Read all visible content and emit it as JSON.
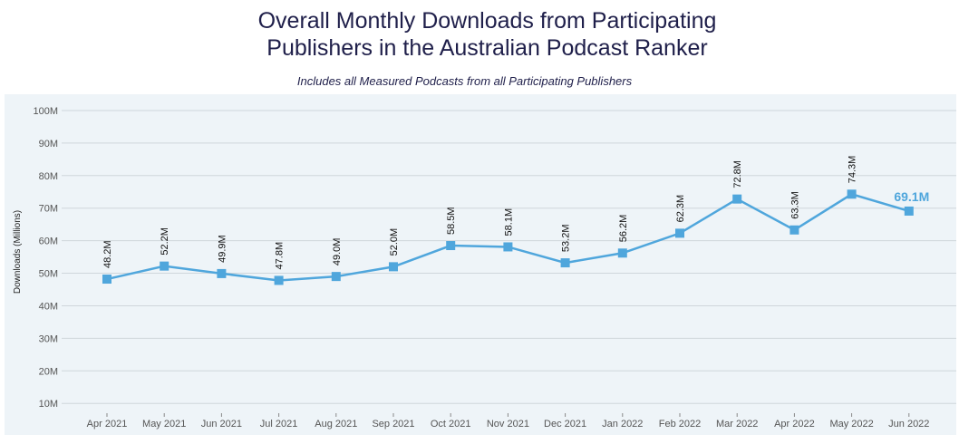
{
  "header": {
    "title_line1": "Overall Monthly Downloads from Participating",
    "title_line2": "Publishers in the Australian Podcast Ranker",
    "subtitle": "Includes all Measured Podcasts from all Participating Publishers"
  },
  "colors": {
    "plot_background": "#eef4f8",
    "series": "#4fa6dc",
    "grid": "#cfd6db"
  },
  "chart_data": {
    "type": "line",
    "ylabel": "Downloads (Millions)",
    "ylim": [
      7,
      105
    ],
    "yticks": [
      10,
      20,
      30,
      40,
      50,
      60,
      70,
      80,
      90,
      100
    ],
    "ytick_labels": [
      "10M",
      "20M",
      "30M",
      "40M",
      "50M",
      "60M",
      "70M",
      "80M",
      "90M",
      "100M"
    ],
    "grid": true,
    "categories": [
      "Apr 2021",
      "May 2021",
      "Jun 2021",
      "Jul 2021",
      "Aug 2021",
      "Sep 2021",
      "Oct 2021",
      "Nov 2021",
      "Dec 2021",
      "Jan 2022",
      "Feb 2022",
      "Mar 2022",
      "Apr 2022",
      "May 2022",
      "Jun 2022"
    ],
    "series": [
      {
        "values": [
          48.2,
          52.2,
          49.9,
          47.8,
          49.0,
          52.0,
          58.5,
          58.1,
          53.2,
          56.2,
          62.3,
          72.8,
          63.3,
          74.3,
          69.1
        ],
        "labels": [
          "48.2M",
          "52.2M",
          "49.9M",
          "47.8M",
          "49.0M",
          "52.0M",
          "58.5M",
          "58.1M",
          "53.2M",
          "56.2M",
          "62.3M",
          "72.8M",
          "63.3M",
          "74.3M",
          "69.1M"
        ]
      }
    ]
  }
}
